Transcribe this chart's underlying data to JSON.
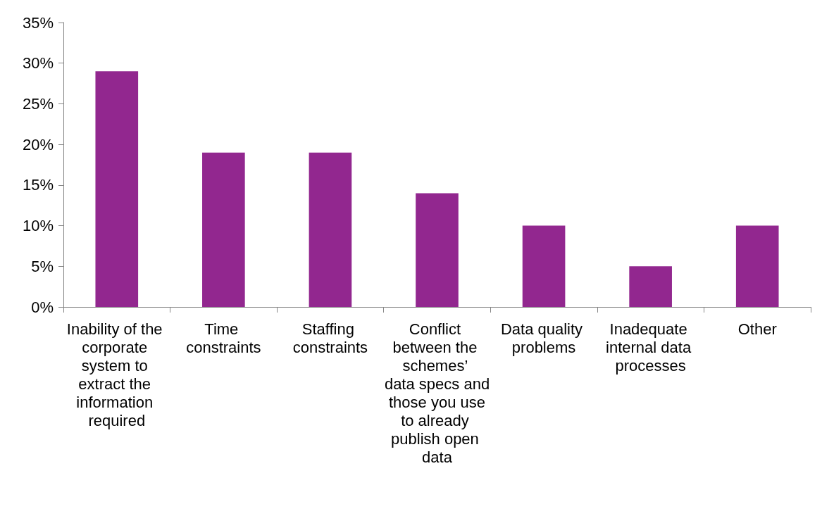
{
  "chart_data": {
    "type": "bar",
    "categories": [
      "Inability of the corporate system to extract the information required",
      "Time constraints",
      "Staffing constraints",
      "Conflict between the schemes’ data specs and those you use to already publish open data",
      "Data quality problems",
      "Inadequate internal data processes",
      "Other"
    ],
    "values": [
      29,
      19,
      19,
      14,
      10,
      5,
      10
    ],
    "color": "#92278f",
    "ylim": [
      0,
      35
    ],
    "yticks": [
      {
        "value": 0,
        "label": "0%"
      },
      {
        "value": 5,
        "label": "5%"
      },
      {
        "value": 10,
        "label": "10%"
      },
      {
        "value": 15,
        "label": "15%"
      },
      {
        "value": 20,
        "label": "20%"
      },
      {
        "value": 25,
        "label": "25%"
      },
      {
        "value": 30,
        "label": "30%"
      },
      {
        "value": 35,
        "label": "35%"
      }
    ],
    "grid": false
  }
}
